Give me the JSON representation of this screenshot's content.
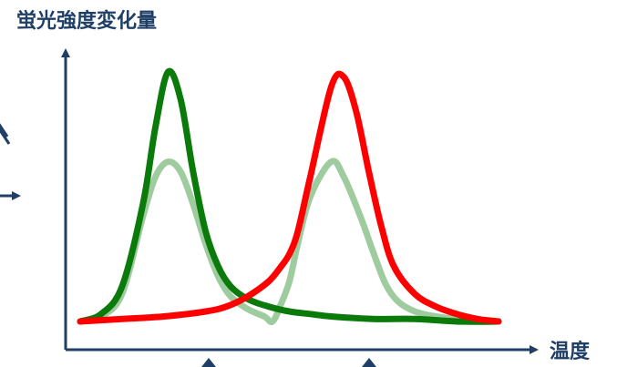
{
  "chart_data": {
    "type": "line",
    "title": "",
    "ylabel": "蛍光強度変化量",
    "xlabel": "温度",
    "grid": false,
    "legend": "none",
    "xlim": [
      0,
      1
    ],
    "ylim": [
      0,
      1
    ],
    "series": [
      {
        "color": "#0a7a0a",
        "opacity": 1,
        "x": [
          0.0,
          0.05,
          0.1,
          0.15,
          0.18,
          0.21,
          0.24,
          0.27,
          0.3,
          0.33,
          0.36,
          0.4,
          0.45,
          0.5,
          0.55,
          0.6,
          0.7,
          0.8,
          0.9,
          1.0
        ],
        "values": [
          0.0,
          0.03,
          0.14,
          0.47,
          0.78,
          1.0,
          0.89,
          0.6,
          0.36,
          0.22,
          0.14,
          0.09,
          0.06,
          0.04,
          0.03,
          0.02,
          0.01,
          0.01,
          0.0,
          0.0
        ]
      },
      {
        "color": "#9fcc9f",
        "opacity": 1,
        "x": [
          0.0,
          0.05,
          0.1,
          0.15,
          0.18,
          0.21,
          0.24,
          0.27,
          0.3,
          0.33,
          0.36,
          0.4,
          0.44,
          0.46,
          0.48,
          0.5,
          0.52,
          0.55,
          0.6,
          0.63,
          0.67,
          0.7,
          0.73,
          0.76,
          0.8,
          0.85,
          0.9,
          0.95,
          1.0
        ],
        "values": [
          0.0,
          0.02,
          0.11,
          0.42,
          0.58,
          0.64,
          0.6,
          0.47,
          0.31,
          0.18,
          0.1,
          0.05,
          0.02,
          0.0,
          0.07,
          0.16,
          0.31,
          0.5,
          0.64,
          0.58,
          0.42,
          0.28,
          0.15,
          0.08,
          0.04,
          0.02,
          0.01,
          0.0,
          0.0
        ]
      },
      {
        "color": "#ff0000",
        "opacity": 1,
        "x": [
          0.0,
          0.1,
          0.2,
          0.3,
          0.35,
          0.4,
          0.45,
          0.48,
          0.5,
          0.52,
          0.55,
          0.6,
          0.63,
          0.66,
          0.69,
          0.72,
          0.75,
          0.8,
          0.85,
          0.9,
          0.95,
          1.0
        ],
        "values": [
          0.0,
          0.01,
          0.02,
          0.04,
          0.06,
          0.1,
          0.16,
          0.22,
          0.27,
          0.36,
          0.58,
          0.94,
          0.98,
          0.84,
          0.6,
          0.38,
          0.22,
          0.11,
          0.06,
          0.03,
          0.01,
          0.0
        ]
      }
    ]
  }
}
